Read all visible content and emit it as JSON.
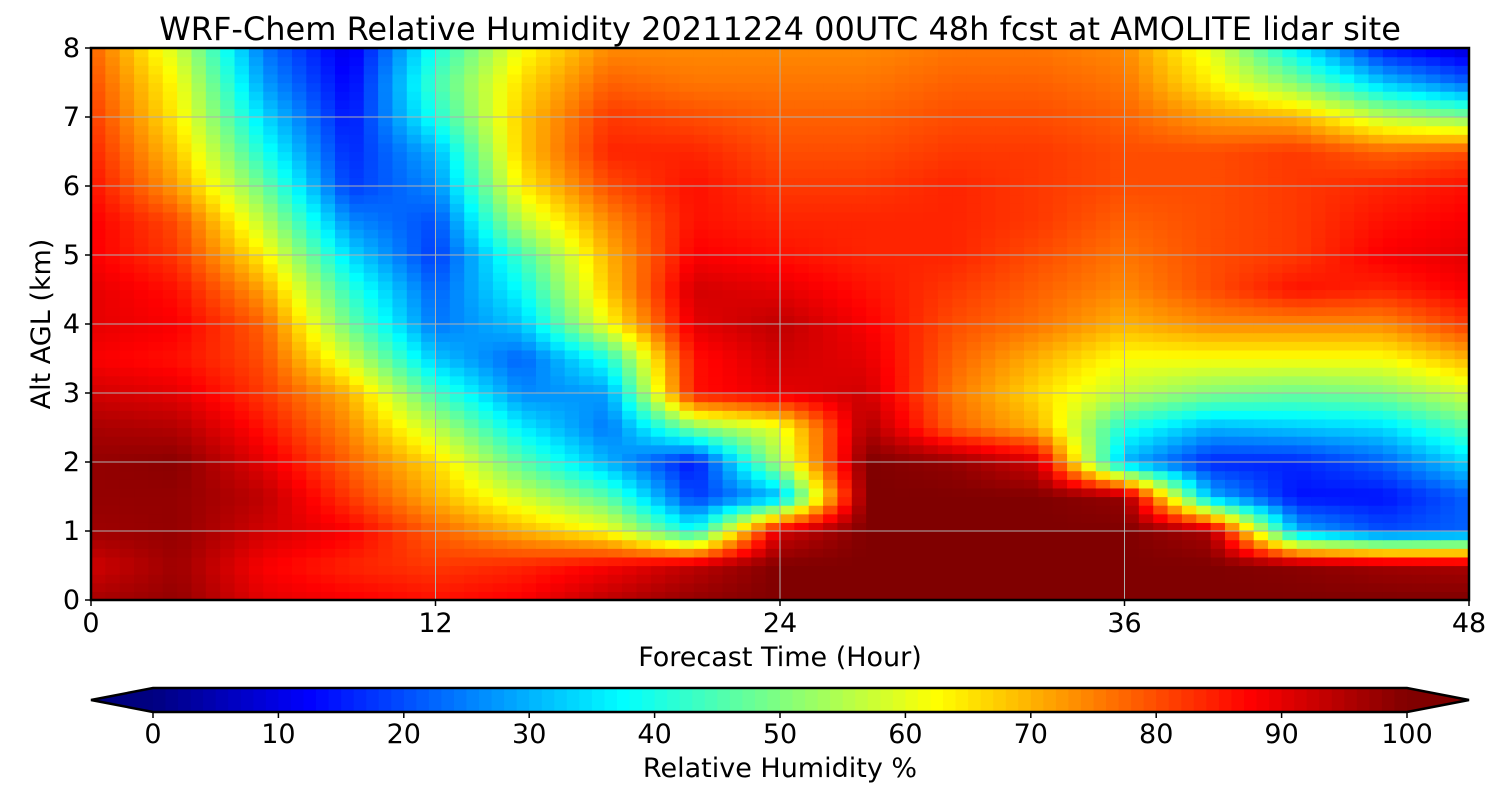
{
  "chart_data": {
    "type": "heatmap",
    "title": "WRF-Chem Relative Humidity 20211224 00UTC 48h fcst at AMOLITE lidar site",
    "xlabel": "Forecast Time (Hour)",
    "ylabel": "Alt AGL (km)",
    "xlim": [
      0,
      48
    ],
    "ylim": [
      0,
      8
    ],
    "x_ticks": [
      0,
      12,
      24,
      36,
      48
    ],
    "y_ticks": [
      0,
      1,
      2,
      3,
      4,
      5,
      6,
      7,
      8
    ],
    "grid": true,
    "colormap": "jet",
    "colorbar": {
      "label": "Relative Humidity %",
      "range": [
        0,
        100
      ],
      "ticks": [
        0,
        10,
        20,
        30,
        40,
        50,
        60,
        70,
        80,
        90,
        100
      ],
      "extend": "both",
      "orientation": "horizontal",
      "placement": "bottom"
    },
    "hours": [
      0,
      3,
      6,
      9,
      12,
      15,
      18,
      21,
      24,
      27,
      30,
      33,
      36,
      39,
      42,
      45,
      48
    ],
    "altitudes_km": [
      0,
      0.5,
      1,
      1.5,
      2,
      2.5,
      3,
      3.5,
      4,
      4.5,
      5,
      5.5,
      6,
      6.5,
      7,
      7.5,
      8
    ],
    "values": [
      [
        96,
        98,
        90,
        88,
        86,
        88,
        94,
        98,
        100,
        100,
        100,
        100,
        100,
        100,
        100,
        100,
        100
      ],
      [
        92,
        97,
        88,
        84,
        82,
        84,
        88,
        94,
        100,
        100,
        100,
        100,
        100,
        100,
        99,
        97,
        96
      ],
      [
        97,
        98,
        92,
        88,
        78,
        70,
        62,
        38,
        92,
        100,
        100,
        100,
        100,
        96,
        30,
        20,
        22
      ],
      [
        98,
        98,
        94,
        82,
        70,
        58,
        46,
        18,
        30,
        100,
        100,
        100,
        98,
        30,
        14,
        14,
        22
      ],
      [
        98,
        99,
        90,
        78,
        66,
        46,
        30,
        14,
        55,
        100,
        98,
        92,
        30,
        16,
        16,
        22,
        34
      ],
      [
        96,
        95,
        86,
        74,
        56,
        36,
        24,
        50,
        60,
        96,
        78,
        70,
        40,
        30,
        32,
        34,
        46
      ],
      [
        92,
        90,
        82,
        70,
        44,
        26,
        28,
        86,
        90,
        92,
        76,
        66,
        56,
        50,
        48,
        50,
        58
      ],
      [
        88,
        86,
        80,
        58,
        32,
        22,
        40,
        86,
        92,
        90,
        78,
        70,
        62,
        62,
        62,
        62,
        70
      ],
      [
        90,
        88,
        78,
        48,
        24,
        32,
        62,
        90,
        94,
        88,
        80,
        76,
        70,
        74,
        74,
        74,
        82
      ],
      [
        90,
        86,
        72,
        42,
        22,
        38,
        68,
        92,
        90,
        86,
        82,
        78,
        74,
        80,
        86,
        84,
        88
      ],
      [
        88,
        82,
        64,
        34,
        18,
        44,
        70,
        88,
        86,
        84,
        84,
        80,
        76,
        80,
        82,
        88,
        90
      ],
      [
        88,
        80,
        56,
        26,
        20,
        56,
        74,
        86,
        84,
        84,
        84,
        82,
        78,
        80,
        82,
        86,
        88
      ],
      [
        86,
        72,
        48,
        18,
        26,
        64,
        80,
        86,
        82,
        82,
        84,
        82,
        80,
        80,
        82,
        84,
        86
      ],
      [
        84,
        68,
        40,
        16,
        30,
        68,
        84,
        84,
        80,
        80,
        82,
        82,
        80,
        80,
        82,
        78,
        80
      ],
      [
        82,
        64,
        34,
        14,
        40,
        68,
        82,
        80,
        78,
        78,
        80,
        80,
        78,
        72,
        70,
        56,
        50
      ],
      [
        80,
        62,
        28,
        12,
        44,
        66,
        78,
        76,
        76,
        76,
        78,
        78,
        76,
        64,
        50,
        32,
        22
      ],
      [
        78,
        58,
        24,
        10,
        40,
        62,
        74,
        74,
        74,
        74,
        76,
        76,
        74,
        60,
        36,
        14,
        8
      ]
    ]
  }
}
